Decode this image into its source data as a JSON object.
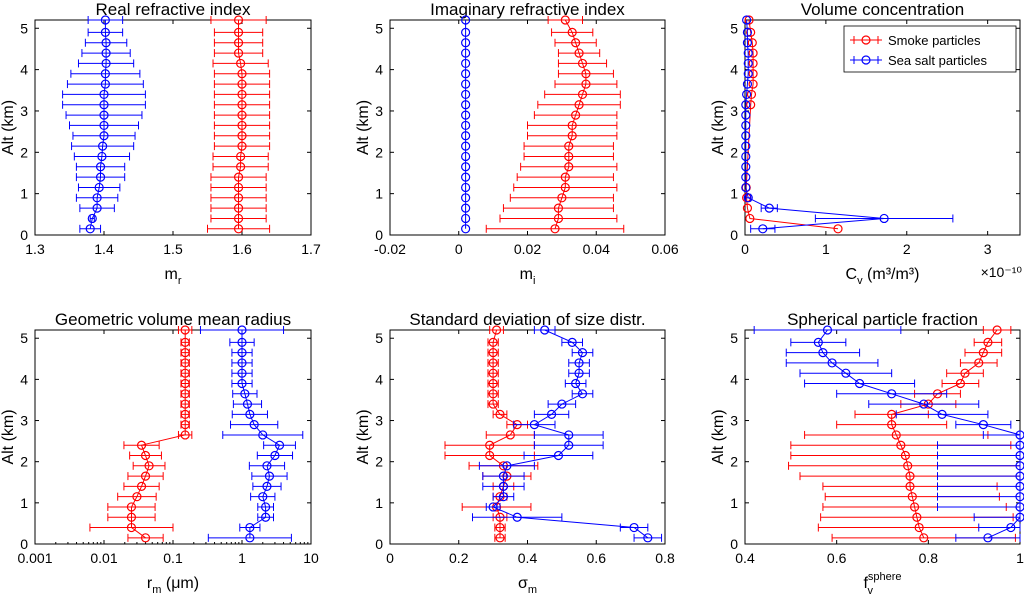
{
  "colors": {
    "smoke": "#ff0000",
    "seasalt": "#0000ff"
  },
  "legend": {
    "smoke": "Smoke particles",
    "seasalt": "Sea salt particles"
  },
  "chart_data": [
    {
      "type": "scatter",
      "title": "Real refractive index",
      "ylabel": "Alt (km)",
      "xlabel": "m",
      "xlabel_sub": "r",
      "xlim": [
        1.3,
        1.7
      ],
      "xticks": [
        "1.3",
        "1.4",
        "1.5",
        "1.6",
        "1.7"
      ],
      "ylim": [
        0,
        5.2
      ],
      "yticks": [
        "0",
        "1",
        "2",
        "3",
        "4",
        "5"
      ],
      "series": [
        {
          "name": "Smoke particles",
          "color": "red",
          "alt": [
            0.15,
            0.4,
            0.65,
            0.9,
            1.15,
            1.4,
            1.65,
            1.9,
            2.15,
            2.4,
            2.65,
            2.9,
            3.15,
            3.4,
            3.65,
            3.9,
            4.15,
            4.4,
            4.65,
            4.9,
            5.2
          ],
          "x": [
            1.595,
            1.595,
            1.595,
            1.595,
            1.595,
            1.595,
            1.598,
            1.598,
            1.6,
            1.6,
            1.6,
            1.6,
            1.6,
            1.6,
            1.6,
            1.6,
            1.598,
            1.595,
            1.595,
            1.595,
            1.595
          ],
          "err": [
            0.045,
            0.04,
            0.04,
            0.04,
            0.04,
            0.04,
            0.04,
            0.04,
            0.04,
            0.04,
            0.04,
            0.04,
            0.04,
            0.04,
            0.04,
            0.04,
            0.04,
            0.035,
            0.035,
            0.035,
            0.04
          ]
        },
        {
          "name": "Sea salt particles",
          "color": "blue",
          "alt": [
            0.15,
            0.4,
            0.65,
            0.9,
            1.15,
            1.4,
            1.65,
            1.9,
            2.15,
            2.4,
            2.65,
            2.9,
            3.15,
            3.4,
            3.65,
            3.9,
            4.15,
            4.4,
            4.65,
            4.9,
            5.2
          ],
          "x": [
            1.38,
            1.383,
            1.39,
            1.39,
            1.393,
            1.395,
            1.395,
            1.397,
            1.398,
            1.4,
            1.4,
            1.4,
            1.4,
            1.4,
            1.402,
            1.402,
            1.403,
            1.403,
            1.403,
            1.402,
            1.402
          ],
          "err": [
            0.015,
            0.003,
            0.025,
            0.03,
            0.03,
            0.035,
            0.035,
            0.04,
            0.045,
            0.045,
            0.05,
            0.055,
            0.06,
            0.06,
            0.055,
            0.05,
            0.04,
            0.035,
            0.03,
            0.025,
            0.025
          ]
        }
      ]
    },
    {
      "type": "scatter",
      "title": "Imaginary refractive index",
      "ylabel": "Alt (km)",
      "xlabel": "m",
      "xlabel_sub": "i",
      "xlim": [
        -0.02,
        0.06
      ],
      "xticks": [
        "-0.02",
        "0",
        "0.02",
        "0.04",
        "0.06"
      ],
      "ylim": [
        0,
        5.2
      ],
      "yticks": [
        "0",
        "1",
        "2",
        "3",
        "4",
        "5"
      ],
      "series": [
        {
          "name": "Smoke particles",
          "color": "red",
          "alt": [
            0.15,
            0.4,
            0.65,
            0.9,
            1.15,
            1.4,
            1.65,
            1.9,
            2.15,
            2.4,
            2.65,
            2.9,
            3.15,
            3.4,
            3.65,
            3.9,
            4.15,
            4.4,
            4.65,
            4.9,
            5.2
          ],
          "x": [
            0.028,
            0.029,
            0.029,
            0.03,
            0.031,
            0.031,
            0.032,
            0.032,
            0.032,
            0.033,
            0.033,
            0.034,
            0.035,
            0.036,
            0.037,
            0.037,
            0.036,
            0.035,
            0.034,
            0.033,
            0.031
          ],
          "err": [
            0.02,
            0.017,
            0.016,
            0.015,
            0.015,
            0.014,
            0.014,
            0.013,
            0.013,
            0.013,
            0.013,
            0.012,
            0.012,
            0.011,
            0.009,
            0.008,
            0.007,
            0.006,
            0.006,
            0.006,
            0.005
          ]
        },
        {
          "name": "Sea salt particles",
          "color": "blue",
          "alt": [
            0.15,
            0.4,
            0.65,
            0.9,
            1.15,
            1.4,
            1.65,
            1.9,
            2.15,
            2.4,
            2.65,
            2.9,
            3.15,
            3.4,
            3.65,
            3.9,
            4.15,
            4.4,
            4.65,
            4.9,
            5.2
          ],
          "x": [
            0.002,
            0.002,
            0.002,
            0.002,
            0.002,
            0.002,
            0.002,
            0.002,
            0.002,
            0.002,
            0.002,
            0.002,
            0.002,
            0.002,
            0.002,
            0.002,
            0.002,
            0.002,
            0.002,
            0.002,
            0.002
          ],
          "err": [
            0,
            0,
            0,
            0,
            0,
            0,
            0,
            0,
            0,
            0,
            0,
            0,
            0,
            0,
            0,
            0,
            0,
            0,
            0,
            0,
            0
          ]
        }
      ]
    },
    {
      "type": "scatter",
      "title": "Volume concentration",
      "ylabel": "Alt (km)",
      "xlabel": "C",
      "xlabel_sub": "v",
      "xlabel_unit": " (m³/m³)",
      "exponent": "×10⁻¹⁰",
      "xlim": [
        0,
        3.4
      ],
      "xticks": [
        "0",
        "1",
        "2",
        "3"
      ],
      "xtick_vals": [
        0,
        1,
        2,
        3
      ],
      "ylim": [
        0,
        5.2
      ],
      "yticks": [
        "0",
        "1",
        "2",
        "3",
        "4",
        "5"
      ],
      "legend": "top-right",
      "series": [
        {
          "name": "Smoke particles",
          "color": "red",
          "alt": [
            0.15,
            0.4,
            0.65,
            0.9,
            1.15,
            3.15,
            3.4,
            3.65,
            3.9,
            4.15,
            4.4,
            4.65,
            4.9,
            5.2
          ],
          "x": [
            1.15,
            0.06,
            0.03,
            0.02,
            0.015,
            0.07,
            0.08,
            0.1,
            0.1,
            0.1,
            0.1,
            0.09,
            0.07,
            0.05
          ],
          "err": [
            0,
            0,
            0,
            0,
            0,
            0,
            0,
            0,
            0,
            0,
            0,
            0,
            0,
            0
          ]
        },
        {
          "name": "Sea salt particles",
          "color": "blue",
          "alt": [
            0.15,
            0.4,
            0.65,
            0.9,
            1.15,
            1.4,
            1.65,
            1.9,
            2.15,
            2.4,
            2.65,
            2.9,
            3.15,
            3.4,
            3.65,
            3.9,
            4.15,
            4.4,
            4.65,
            4.9,
            5.2
          ],
          "x": [
            0.22,
            1.72,
            0.3,
            0.04,
            0.01,
            0.01,
            0.01,
            0.01,
            0.01,
            0.01,
            0.01,
            0.01,
            0.01,
            0.02,
            0.03,
            0.04,
            0.04,
            0.04,
            0.03,
            0.03,
            0.02
          ],
          "err": [
            0.15,
            0.85,
            0.1,
            0.03,
            0,
            0,
            0,
            0,
            0,
            0,
            0,
            0,
            0,
            0,
            0,
            0,
            0,
            0,
            0,
            0,
            0
          ]
        }
      ]
    },
    {
      "type": "scatter",
      "title": "Geometric volume mean radius",
      "ylabel": "Alt (km)",
      "xlabel": "r",
      "xlabel_sub": "m",
      "xlabel_unit": " (μm)",
      "xscale": "log",
      "xlim": [
        0.001,
        10
      ],
      "xticks": [
        "0.001",
        "0.01",
        "0.1",
        "1",
        "10"
      ],
      "xtick_vals": [
        0.001,
        0.01,
        0.1,
        1,
        10
      ],
      "ylim": [
        0,
        5.2
      ],
      "yticks": [
        "0",
        "1",
        "2",
        "3",
        "4",
        "5"
      ],
      "series": [
        {
          "name": "Smoke particles",
          "color": "red",
          "alt": [
            0.15,
            0.4,
            0.65,
            0.9,
            1.15,
            1.4,
            1.65,
            1.9,
            2.15,
            2.4,
            2.65,
            2.9,
            3.15,
            3.4,
            3.65,
            3.9,
            4.15,
            4.4,
            4.65,
            4.9,
            5.2
          ],
          "x": [
            0.04,
            0.025,
            0.025,
            0.025,
            0.03,
            0.035,
            0.04,
            0.045,
            0.04,
            0.035,
            0.15,
            0.15,
            0.15,
            0.15,
            0.15,
            0.15,
            0.15,
            0.15,
            0.15,
            0.15,
            0.15
          ],
          "errf": [
            1.8,
            4,
            2.2,
            2.2,
            1.9,
            1.8,
            1.8,
            1.7,
            1.7,
            1.8,
            1.25,
            1.15,
            1.15,
            1.15,
            1.15,
            1.15,
            1.15,
            1.15,
            1.15,
            1.15,
            1.25
          ]
        },
        {
          "name": "Sea salt particles",
          "color": "blue",
          "alt": [
            0.15,
            0.4,
            0.65,
            0.9,
            1.15,
            1.4,
            1.65,
            1.9,
            2.15,
            2.4,
            2.65,
            2.9,
            3.15,
            3.4,
            3.65,
            3.9,
            4.15,
            4.4,
            4.65,
            4.9,
            5.2
          ],
          "x": [
            1.3,
            1.3,
            2.2,
            2.2,
            2,
            2.3,
            2.5,
            2.3,
            3,
            3.5,
            2,
            1.5,
            1.3,
            1.2,
            1.1,
            1,
            1,
            1,
            1,
            1,
            1
          ],
          "errf": [
            4,
            1.4,
            1.3,
            1.3,
            1.5,
            1.6,
            1.8,
            1.8,
            1.8,
            1.7,
            3.8,
            2.2,
            1.8,
            1.6,
            1.5,
            1.4,
            1.4,
            1.4,
            1.4,
            1.5,
            4
          ]
        }
      ]
    },
    {
      "type": "scatter",
      "title": "Standard deviation of size distr.",
      "ylabel": "Alt (km)",
      "xlabel": "σ",
      "xlabel_sub": "m",
      "xlim": [
        0,
        0.8
      ],
      "xticks": [
        "0",
        "0.2",
        "0.4",
        "0.6",
        "0.8"
      ],
      "ylim": [
        0,
        5.2
      ],
      "yticks": [
        "0",
        "1",
        "2",
        "3",
        "4",
        "5"
      ],
      "series": [
        {
          "name": "Smoke particles",
          "color": "red",
          "alt": [
            0.15,
            0.4,
            0.65,
            0.9,
            1.15,
            1.4,
            1.65,
            1.9,
            2.15,
            2.4,
            2.65,
            2.9,
            3.15,
            3.4,
            3.65,
            3.9,
            4.15,
            4.4,
            4.65,
            4.9,
            5.2
          ],
          "x": [
            0.32,
            0.32,
            0.32,
            0.31,
            0.32,
            0.33,
            0.34,
            0.33,
            0.29,
            0.29,
            0.35,
            0.37,
            0.32,
            0.3,
            0.3,
            0.3,
            0.3,
            0.3,
            0.3,
            0.3,
            0.31
          ],
          "err": [
            0.015,
            0.015,
            0.02,
            0.1,
            0.02,
            0.03,
            0.07,
            0.1,
            0.13,
            0.13,
            0.07,
            0.03,
            0.02,
            0.015,
            0.015,
            0.015,
            0.015,
            0.015,
            0.015,
            0.015,
            0.02
          ]
        },
        {
          "name": "Sea salt particles",
          "color": "blue",
          "alt": [
            0.15,
            0.4,
            0.65,
            0.9,
            1.15,
            1.4,
            1.65,
            1.9,
            2.15,
            2.4,
            2.65,
            2.9,
            3.15,
            3.4,
            3.65,
            3.9,
            4.15,
            4.4,
            4.65,
            4.9,
            5.2
          ],
          "x": [
            0.75,
            0.71,
            0.37,
            0.3,
            0.33,
            0.33,
            0.33,
            0.34,
            0.49,
            0.52,
            0.52,
            0.42,
            0.47,
            0.5,
            0.56,
            0.54,
            0.55,
            0.55,
            0.56,
            0.53,
            0.45
          ],
          "err": [
            0.04,
            0.04,
            0.13,
            0.02,
            0.03,
            0.06,
            0.06,
            0.08,
            0.1,
            0.1,
            0.1,
            0.06,
            0.05,
            0.04,
            0.03,
            0.03,
            0.03,
            0.03,
            0.03,
            0.03,
            0.03
          ]
        }
      ]
    },
    {
      "type": "scatter",
      "title": "Spherical particle fraction",
      "ylabel": "Alt (km)",
      "xlabel": "f",
      "xlabel_sub": "v",
      "xlabel_sup": "sphere",
      "xlim": [
        0.4,
        1
      ],
      "xticks": [
        "0.4",
        "0.6",
        "0.8",
        "1"
      ],
      "xtick_vals": [
        0.4,
        0.6,
        0.8,
        1
      ],
      "ylim": [
        0,
        5.2
      ],
      "yticks": [
        "0",
        "1",
        "2",
        "3",
        "4",
        "5"
      ],
      "series": [
        {
          "name": "Smoke particles",
          "color": "red",
          "alt": [
            0.15,
            0.4,
            0.65,
            0.9,
            1.15,
            1.4,
            1.65,
            1.9,
            2.15,
            2.4,
            2.65,
            2.9,
            3.15,
            3.4,
            3.65,
            3.9,
            4.15,
            4.4,
            4.65,
            4.9,
            5.2
          ],
          "x": [
            0.79,
            0.78,
            0.775,
            0.77,
            0.765,
            0.76,
            0.76,
            0.755,
            0.75,
            0.74,
            0.73,
            0.72,
            0.72,
            0.8,
            0.82,
            0.87,
            0.88,
            0.91,
            0.92,
            0.93,
            0.95
          ],
          "err": [
            0.2,
            0.22,
            0.21,
            0.2,
            0.19,
            0.19,
            0.24,
            0.26,
            0.25,
            0.24,
            0.2,
            0.12,
            0.08,
            0.06,
            0.05,
            0.04,
            0.04,
            0.04,
            0.04,
            0.03,
            0.03
          ]
        },
        {
          "name": "Sea salt particles",
          "color": "blue",
          "alt": [
            0.15,
            0.4,
            0.65,
            0.9,
            1.15,
            1.4,
            1.65,
            1.9,
            2.15,
            2.4,
            2.65,
            2.9,
            3.15,
            3.4,
            3.65,
            3.9,
            4.15,
            4.4,
            4.65,
            4.9,
            5.2
          ],
          "x": [
            0.93,
            0.98,
            1,
            1,
            1,
            1,
            1,
            1,
            1,
            1,
            1,
            0.92,
            0.83,
            0.79,
            0.72,
            0.65,
            0.62,
            0.59,
            0.57,
            0.56,
            0.58
          ],
          "err": [
            0.07,
            0.07,
            0.1,
            0.18,
            0.18,
            0.18,
            0.18,
            0.18,
            0.18,
            0.18,
            0.08,
            0.06,
            0.1,
            0.12,
            0.12,
            0.12,
            0.1,
            0.1,
            0.08,
            0.06,
            0.16
          ]
        }
      ]
    }
  ]
}
